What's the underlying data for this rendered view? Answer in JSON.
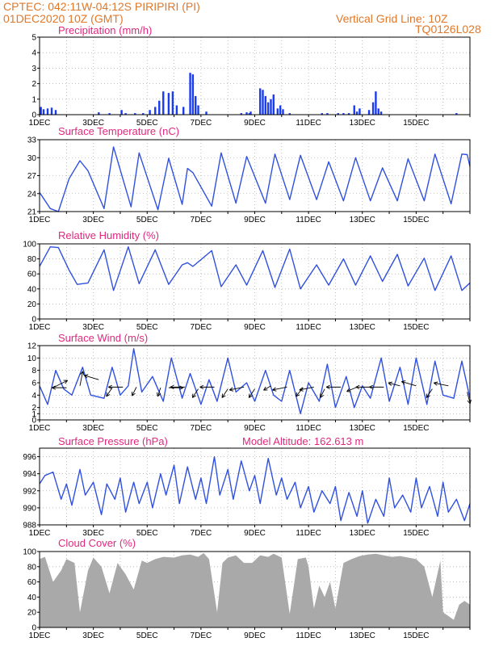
{
  "header": {
    "line1_left": "CPTEC:   042:11W-04:12S   PIRIPIRI (PI)",
    "line2_left": "01DEC2020 10Z (GMT)",
    "line2_right": "Vertical Grid Line: 10Z",
    "line3_right": "TQ0126L028"
  },
  "panels": {
    "precip": {
      "title": "Precipitation (mm/h)"
    },
    "temp": {
      "title": "Surface Temperature (nC)"
    },
    "rh": {
      "title": "Relative Humidity (%)"
    },
    "wind": {
      "title": "Surface Wind (m/s)"
    },
    "pres": {
      "title": "Surface Pressure (hPa)",
      "extra": "Model Altitude: 162.613 m"
    },
    "cloud": {
      "title": "Cloud Cover (%)"
    }
  },
  "colors": {
    "header": "#e0782a",
    "title": "#e0287e",
    "line": "#3050e0",
    "bar": "#1a3cf0",
    "cloud": "#a9a9a9"
  },
  "chart_data": [
    {
      "id": "precip",
      "type": "bar",
      "xlabel": "",
      "ylabel": "",
      "ylim": [
        0,
        5
      ],
      "yticks": [
        0,
        1,
        2,
        3,
        4,
        5
      ],
      "xticks": [
        "1DEC",
        "3DEC",
        "5DEC",
        "7DEC",
        "9DEC",
        "11DEC",
        "13DEC",
        "15DEC"
      ],
      "x_days": [
        0.05,
        0.15,
        0.3,
        0.45,
        0.6,
        2.2,
        2.6,
        3.05,
        3.2,
        3.55,
        3.85,
        4.1,
        4.3,
        4.45,
        4.6,
        4.8,
        4.95,
        5.1,
        5.35,
        5.6,
        5.7,
        5.8,
        5.9,
        6.2,
        7.5,
        7.7,
        7.8,
        7.85,
        8.2,
        8.3,
        8.4,
        8.5,
        8.6,
        8.7,
        8.85,
        8.95,
        9.05,
        9.3,
        10.5,
        10.7,
        11.1,
        11.3,
        11.5,
        11.7,
        11.8,
        11.9,
        12.25,
        12.4,
        12.5,
        12.6,
        12.7,
        15.5
      ],
      "values": [
        0.5,
        0.35,
        0.4,
        0.45,
        0.3,
        0.15,
        0.1,
        0.3,
        0.1,
        0.1,
        0.1,
        0.3,
        0.5,
        0.9,
        1.5,
        1.4,
        1.5,
        0.6,
        0.5,
        2.7,
        2.6,
        1.2,
        0.6,
        0.2,
        0.1,
        0.15,
        0.1,
        0.2,
        1.7,
        1.6,
        1.2,
        0.8,
        1.0,
        1.3,
        0.4,
        0.6,
        0.35,
        0.1,
        0.1,
        0.1,
        0.1,
        0.1,
        0.1,
        0.6,
        0.2,
        0.4,
        0.3,
        0.8,
        1.5,
        0.4,
        0.2,
        0.1
      ]
    },
    {
      "id": "temp",
      "type": "line",
      "ylim": [
        21,
        33
      ],
      "yticks": [
        21,
        24,
        27,
        30,
        33
      ],
      "xticks": [
        "1DEC",
        "3DEC",
        "5DEC",
        "7DEC",
        "9DEC",
        "11DEC",
        "13DEC",
        "15DEC"
      ],
      "x_days": [
        0,
        0.4,
        0.7,
        1.1,
        1.5,
        1.8,
        2.4,
        2.75,
        3.4,
        3.7,
        4.4,
        4.8,
        5.3,
        5.5,
        5.7,
        6.4,
        6.75,
        7.3,
        7.7,
        8.4,
        8.75,
        9.3,
        9.7,
        10.3,
        10.75,
        11.3,
        11.75,
        12.3,
        12.75,
        13.3,
        13.7,
        14.3,
        14.7,
        15.3,
        15.7,
        15.9,
        16.0
      ],
      "values": [
        24.2,
        21.5,
        21.0,
        26.5,
        29.5,
        27.8,
        21.5,
        31.8,
        21.8,
        30.8,
        21.3,
        29.9,
        22.2,
        28.2,
        27.5,
        21.9,
        30.8,
        22.4,
        30.2,
        22.4,
        30.6,
        23.0,
        30.4,
        23.0,
        29.3,
        22.8,
        30.0,
        22.8,
        28.3,
        22.8,
        29.8,
        22.8,
        30.6,
        22.3,
        30.6,
        30.5,
        28.5
      ]
    },
    {
      "id": "rh",
      "type": "line",
      "ylim": [
        0,
        100
      ],
      "yticks": [
        0,
        20,
        40,
        60,
        80,
        100
      ],
      "xticks": [
        "1DEC",
        "3DEC",
        "5DEC",
        "7DEC",
        "9DEC",
        "11DEC",
        "13DEC",
        "15DEC"
      ],
      "x_days": [
        0,
        0.4,
        0.7,
        1.1,
        1.4,
        1.8,
        2.4,
        2.75,
        3.3,
        3.7,
        4.3,
        4.8,
        5.3,
        5.5,
        5.7,
        6.4,
        6.75,
        7.3,
        7.7,
        8.3,
        8.75,
        9.3,
        9.7,
        10.3,
        10.75,
        11.3,
        11.75,
        12.3,
        12.75,
        13.3,
        13.7,
        14.3,
        14.7,
        15.3,
        15.7,
        16.0
      ],
      "values": [
        70,
        96,
        95,
        65,
        46,
        48,
        92,
        38,
        96,
        47,
        92,
        46,
        72,
        75,
        70,
        91,
        43,
        72,
        45,
        91,
        42,
        93,
        40,
        72,
        45,
        80,
        45,
        84,
        50,
        86,
        44,
        81,
        38,
        84,
        38,
        48
      ]
    },
    {
      "id": "wind",
      "type": "line",
      "ylim": [
        0,
        12
      ],
      "yticks": [
        0,
        1,
        2,
        4,
        6,
        8,
        10,
        12
      ],
      "xticks": [
        "1DEC",
        "3DEC",
        "5DEC",
        "7DEC",
        "9DEC",
        "11DEC",
        "13DEC",
        "15DEC"
      ],
      "x_days": [
        0,
        0.3,
        0.6,
        0.9,
        1.2,
        1.6,
        1.9,
        2.4,
        2.7,
        3.0,
        3.3,
        3.5,
        3.8,
        4.2,
        4.6,
        4.9,
        5.3,
        5.6,
        6.0,
        6.3,
        6.6,
        7.0,
        7.3,
        7.7,
        8.0,
        8.4,
        8.7,
        9.0,
        9.3,
        9.7,
        10.0,
        10.4,
        10.7,
        11.0,
        11.4,
        11.7,
        12.0,
        12.3,
        12.7,
        13.0,
        13.4,
        13.7,
        14.0,
        14.4,
        14.7,
        15.0,
        15.4,
        15.7,
        16.0
      ],
      "values": [
        5.5,
        2.5,
        8.0,
        5.0,
        4.0,
        8.5,
        4.0,
        3.5,
        8.5,
        4.0,
        5.5,
        11.5,
        4.5,
        7.0,
        3.0,
        10.0,
        3.5,
        7.5,
        2.5,
        6.5,
        3.0,
        10.0,
        4.5,
        6.0,
        3.0,
        8.0,
        4.0,
        3.0,
        8.0,
        1.0,
        6.0,
        3.0,
        9.0,
        2.0,
        7.0,
        2.0,
        5.5,
        3.5,
        10.0,
        3.0,
        8.5,
        2.5,
        10.0,
        2.5,
        9.5,
        4.0,
        3.5,
        9.5,
        3.5
      ],
      "arrows": [
        {
          "x": 0.5,
          "y": 5.2,
          "u": 1.0,
          "v": 0.5
        },
        {
          "x": 1.0,
          "y": 5.2,
          "u": -1.0,
          "v": 0.0
        },
        {
          "x": 1.5,
          "y": 5.5,
          "u": 0.2,
          "v": 1.0
        },
        {
          "x": 2.2,
          "y": 6.5,
          "u": -1.0,
          "v": 0.3
        },
        {
          "x": 2.7,
          "y": 5.2,
          "u": -0.4,
          "v": -0.6
        },
        {
          "x": 3.1,
          "y": 5.3,
          "u": -1.0,
          "v": 0.0
        },
        {
          "x": 3.6,
          "y": 5.3,
          "u": -0.3,
          "v": -0.6
        },
        {
          "x": 4.5,
          "y": 5.2,
          "u": -0.2,
          "v": -0.6
        },
        {
          "x": 4.8,
          "y": 5.2,
          "u": 1.0,
          "v": 0.0
        },
        {
          "x": 5.4,
          "y": 5.3,
          "u": -1.0,
          "v": 0.0
        },
        {
          "x": 5.9,
          "y": 5.0,
          "u": -0.4,
          "v": -0.6
        },
        {
          "x": 6.5,
          "y": 5.3,
          "u": -1.0,
          "v": 0.0
        },
        {
          "x": 7.0,
          "y": 5.0,
          "u": -0.4,
          "v": -0.6
        },
        {
          "x": 7.6,
          "y": 5.3,
          "u": -1.0,
          "v": -0.2
        },
        {
          "x": 8.0,
          "y": 5.0,
          "u": -0.4,
          "v": -0.6
        },
        {
          "x": 8.6,
          "y": 5.5,
          "u": -0.5,
          "v": -0.3
        },
        {
          "x": 9.2,
          "y": 5.3,
          "u": -1.0,
          "v": -0.2
        },
        {
          "x": 9.8,
          "y": 5.2,
          "u": -0.5,
          "v": -0.6
        },
        {
          "x": 10.2,
          "y": 5.3,
          "u": -1.0,
          "v": -0.2
        },
        {
          "x": 10.6,
          "y": 5.0,
          "u": -0.3,
          "v": -0.6
        },
        {
          "x": 11.2,
          "y": 5.3,
          "u": -1.0,
          "v": 0.0
        },
        {
          "x": 11.8,
          "y": 5.3,
          "u": -0.7,
          "v": -0.3
        },
        {
          "x": 12.3,
          "y": 5.3,
          "u": -1.0,
          "v": 0.0
        },
        {
          "x": 12.8,
          "y": 5.3,
          "u": -1.0,
          "v": 0.0
        },
        {
          "x": 13.4,
          "y": 5.5,
          "u": -0.8,
          "v": 0.2
        },
        {
          "x": 14.0,
          "y": 5.5,
          "u": -1.0,
          "v": 0.3
        },
        {
          "x": 14.6,
          "y": 5.0,
          "u": -0.4,
          "v": -0.6
        },
        {
          "x": 15.2,
          "y": 5.5,
          "u": -1.0,
          "v": 0.2
        },
        {
          "x": 15.9,
          "y": 4.5,
          "u": 0.2,
          "v": -0.8
        }
      ]
    },
    {
      "id": "pres",
      "type": "line",
      "ylim": [
        988,
        997
      ],
      "yticks": [
        988,
        990,
        992,
        994,
        996
      ],
      "xticks": [
        "1DEC",
        "3DEC",
        "5DEC",
        "7DEC",
        "9DEC",
        "11DEC",
        "13DEC",
        "15DEC"
      ],
      "x_days": [
        0,
        0.2,
        0.5,
        0.8,
        1.0,
        1.2,
        1.5,
        1.7,
        2.0,
        2.3,
        2.5,
        2.8,
        3.0,
        3.2,
        3.5,
        3.7,
        4.0,
        4.2,
        4.5,
        4.7,
        5.0,
        5.2,
        5.5,
        5.8,
        6.0,
        6.2,
        6.5,
        6.7,
        7.0,
        7.2,
        7.5,
        7.8,
        8.0,
        8.2,
        8.5,
        8.8,
        9.0,
        9.2,
        9.5,
        9.7,
        10.0,
        10.2,
        10.5,
        10.8,
        11.0,
        11.2,
        11.5,
        11.8,
        12.0,
        12.2,
        12.5,
        12.8,
        13.0,
        13.2,
        13.5,
        13.8,
        14.0,
        14.2,
        14.5,
        14.8,
        15.0,
        15.2,
        15.5,
        15.8,
        16.0
      ],
      "values": [
        992.8,
        993.8,
        994.2,
        991.0,
        992.8,
        990.3,
        994.5,
        991.5,
        993.0,
        989.2,
        992.8,
        991.0,
        993.5,
        989.5,
        993.0,
        990.5,
        993.0,
        990.0,
        994.0,
        991.5,
        995.0,
        990.5,
        994.8,
        991.0,
        993.5,
        990.5,
        996.0,
        991.5,
        994.5,
        991.0,
        995.5,
        992.0,
        993.8,
        990.5,
        995.8,
        991.5,
        993.5,
        991.0,
        993.0,
        990.0,
        992.5,
        989.5,
        992.0,
        990.5,
        992.5,
        988.5,
        991.8,
        989.0,
        992.0,
        988.2,
        991.0,
        989.0,
        993.5,
        990.0,
        991.5,
        989.5,
        993.5,
        990.0,
        992.5,
        989.0,
        993.0,
        989.5,
        991.0,
        988.5,
        990.5
      ]
    },
    {
      "id": "cloud",
      "type": "area",
      "ylim": [
        0,
        100
      ],
      "yticks": [
        0,
        20,
        40,
        60,
        80,
        100
      ],
      "xticks": [
        "1DEC",
        "3DEC",
        "5DEC",
        "7DEC",
        "9DEC",
        "11DEC",
        "13DEC",
        "15DEC"
      ],
      "x_days": [
        0,
        0.2,
        0.5,
        0.8,
        1.0,
        1.3,
        1.5,
        1.8,
        2.0,
        2.3,
        2.6,
        2.9,
        3.2,
        3.5,
        3.8,
        4.0,
        4.3,
        4.6,
        5.0,
        5.3,
        5.6,
        5.9,
        6.1,
        6.3,
        6.6,
        6.8,
        7.0,
        7.3,
        7.6,
        7.9,
        8.2,
        8.5,
        8.7,
        9.0,
        9.3,
        9.6,
        9.9,
        10.0,
        10.2,
        10.4,
        10.6,
        10.8,
        11.0,
        11.3,
        11.6,
        11.9,
        12.2,
        12.5,
        12.8,
        13.1,
        13.4,
        13.7,
        14.0,
        14.3,
        14.6,
        14.9,
        15.0,
        15.2,
        15.4,
        15.6,
        15.8,
        16.0
      ],
      "values": [
        90,
        93,
        60,
        75,
        90,
        85,
        20,
        75,
        92,
        80,
        45,
        85,
        70,
        50,
        88,
        85,
        90,
        93,
        92,
        95,
        96,
        93,
        98,
        90,
        20,
        85,
        92,
        95,
        85,
        85,
        95,
        93,
        97,
        92,
        18,
        90,
        92,
        80,
        25,
        55,
        40,
        60,
        25,
        85,
        90,
        94,
        96,
        97,
        95,
        93,
        94,
        92,
        90,
        80,
        40,
        88,
        20,
        15,
        10,
        30,
        35,
        30
      ]
    }
  ]
}
